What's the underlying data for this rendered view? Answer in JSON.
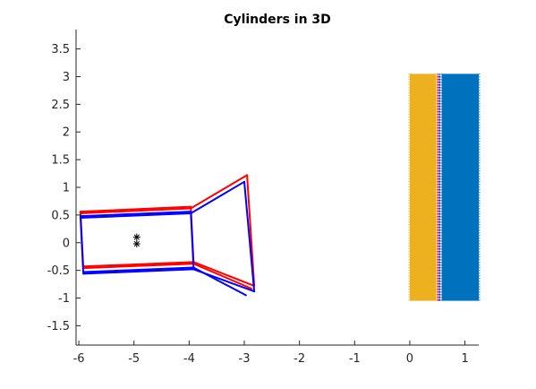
{
  "chart_data": {
    "type": "line",
    "title": "Cylinders in 3D",
    "xlabel": "",
    "ylabel": "",
    "xlim": [
      -6.05,
      1.25
    ],
    "ylim": [
      -1.85,
      3.85
    ],
    "x_ticks": [
      -6,
      -5,
      -4,
      -3,
      -2,
      -1,
      0,
      1
    ],
    "x_tick_labels": [
      "-6",
      "-5",
      "-4",
      "-3",
      "-2",
      "-1",
      "0",
      "1"
    ],
    "y_ticks": [
      -1.5,
      -1,
      -0.5,
      0,
      0.5,
      1,
      1.5,
      2,
      2.5,
      3,
      3.5
    ],
    "y_tick_labels": [
      "-1.5",
      "-1",
      "-0.5",
      "0",
      "0.5",
      "1",
      "1.5",
      "2",
      "2.5",
      "3",
      "3.5"
    ],
    "grid": false,
    "legend": "none",
    "colors": {
      "red": "#ff0000",
      "blue": "#0000ff",
      "orange": "#edb120",
      "steelblue": "#0072bd",
      "axes": "#262626"
    },
    "wireframes": [
      {
        "color": "red",
        "lines": [
          [
            [
              -5.97,
              0.56
            ],
            [
              -3.97,
              0.65
            ]
          ],
          [
            [
              -5.97,
              0.53
            ],
            [
              -3.97,
              0.62
            ]
          ],
          [
            [
              -5.97,
              0.56
            ],
            [
              -5.92,
              -0.43
            ]
          ],
          [
            [
              -3.97,
              0.65
            ],
            [
              -3.92,
              -0.35
            ]
          ],
          [
            [
              -5.92,
              -0.43
            ],
            [
              -3.92,
              -0.35
            ]
          ],
          [
            [
              -5.92,
              -0.46
            ],
            [
              -3.92,
              -0.38
            ]
          ],
          [
            [
              -3.97,
              0.62
            ],
            [
              -2.95,
              1.22
            ]
          ],
          [
            [
              -3.92,
              -0.35
            ],
            [
              -2.82,
              -0.78
            ]
          ],
          [
            [
              -3.92,
              -0.38
            ],
            [
              -2.87,
              -0.83
            ]
          ],
          [
            [
              -2.95,
              1.22
            ],
            [
              -2.82,
              -0.78
            ]
          ]
        ]
      },
      {
        "color": "blue",
        "lines": [
          [
            [
              -5.97,
              0.48
            ],
            [
              -3.97,
              0.56
            ]
          ],
          [
            [
              -5.97,
              0.45
            ],
            [
              -3.97,
              0.53
            ]
          ],
          [
            [
              -5.97,
              0.48
            ],
            [
              -5.92,
              -0.53
            ]
          ],
          [
            [
              -3.97,
              0.56
            ],
            [
              -3.92,
              -0.45
            ]
          ],
          [
            [
              -5.92,
              -0.53
            ],
            [
              -3.92,
              -0.45
            ]
          ],
          [
            [
              -5.92,
              -0.56
            ],
            [
              -3.92,
              -0.48
            ]
          ],
          [
            [
              -3.97,
              0.53
            ],
            [
              -3.0,
              1.1
            ]
          ],
          [
            [
              -3.92,
              -0.45
            ],
            [
              -2.97,
              -0.95
            ]
          ],
          [
            [
              -3.92,
              -0.48
            ],
            [
              -2.82,
              -0.88
            ]
          ],
          [
            [
              -3.0,
              1.1
            ],
            [
              -2.82,
              -0.88
            ]
          ]
        ]
      }
    ],
    "markers": [
      {
        "symbol": "*",
        "x": -4.95,
        "y": 0.1
      },
      {
        "symbol": "*",
        "x": -4.95,
        "y": -0.02
      }
    ],
    "surfaces": [
      {
        "color": "orange",
        "x": [
          0.0,
          0.48
        ],
        "y": [
          -1.05,
          3.05
        ]
      },
      {
        "color": "steelblue",
        "x": [
          0.58,
          1.25
        ],
        "y": [
          -1.05,
          3.05
        ]
      }
    ],
    "seam_lines": [
      {
        "color": "red",
        "x": 0.51,
        "y": [
          -1.05,
          3.05
        ]
      },
      {
        "color": "blue",
        "x": 0.54,
        "y": [
          -1.05,
          3.05
        ]
      }
    ]
  }
}
